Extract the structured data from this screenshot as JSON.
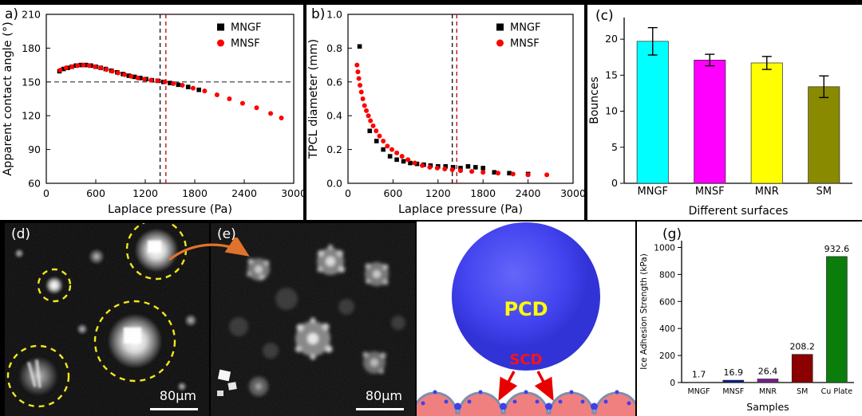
{
  "figure": {
    "background": "#000000"
  },
  "panels": {
    "a": {
      "label": "a)"
    },
    "b": {
      "label": "b)"
    },
    "c": {
      "label": "(c)"
    },
    "d": {
      "label": "(d)",
      "scale_bar": "80µm"
    },
    "e": {
      "label": "(e)",
      "scale_bar": "80µm"
    },
    "schematic": {
      "pcd_label": "PCD",
      "scd_label": "SCD",
      "pcd_color": "#ffff00",
      "scd_color": "#ff1212",
      "droplet_color": "#4040e8",
      "surface_color": "#f08080"
    },
    "g": {
      "label": "(g)"
    }
  },
  "chart_data": [
    {
      "id": "a",
      "type": "scatter",
      "xlabel": "Laplace pressure (Pa)",
      "ylabel": "Apparent contact angle (°)",
      "xlim": [
        0,
        3000
      ],
      "ylim": [
        60,
        210
      ],
      "xticks": [
        0,
        600,
        1200,
        1800,
        2400,
        3000
      ],
      "yticks": [
        60,
        90,
        120,
        150,
        180,
        210
      ],
      "hline": 150,
      "vlines": [
        {
          "x": 1380,
          "color": "#1a1a1a"
        },
        {
          "x": 1450,
          "color": "#c01414"
        }
      ],
      "series": [
        {
          "name": "MNGF",
          "marker": "square",
          "color": "#000000",
          "x": [
            160,
            210,
            260,
            310,
            360,
            420,
            480,
            540,
            600,
            660,
            720,
            790,
            860,
            930,
            1000,
            1070,
            1140,
            1210,
            1280,
            1350,
            1420,
            1500,
            1600,
            1720,
            1850
          ],
          "y": [
            159.5,
            161.5,
            162.5,
            163.5,
            164.5,
            165,
            165,
            164.5,
            163.5,
            162.5,
            161.5,
            160,
            158.5,
            157,
            155.5,
            154.5,
            153.5,
            152.5,
            151.5,
            151,
            150,
            149,
            147.5,
            145.5,
            143
          ]
        },
        {
          "name": "MNSF",
          "marker": "circle",
          "color": "#ff0000",
          "x": [
            170,
            240,
            310,
            380,
            450,
            520,
            590,
            660,
            730,
            800,
            870,
            950,
            1030,
            1110,
            1190,
            1270,
            1350,
            1440,
            1540,
            1650,
            1780,
            1920,
            2070,
            2220,
            2380,
            2550,
            2720,
            2850
          ],
          "y": [
            160.5,
            162.5,
            163.5,
            164.5,
            165,
            164.5,
            163.5,
            162.5,
            161,
            159.5,
            158,
            156.5,
            155,
            153.5,
            152.5,
            151.5,
            151,
            150,
            148.5,
            147,
            144.5,
            142,
            138.5,
            135,
            131,
            127,
            122,
            118
          ]
        }
      ]
    },
    {
      "id": "b",
      "type": "scatter",
      "xlabel": "Laplace pressure (Pa)",
      "ylabel": "TPCL diameter (mm)",
      "xlim": [
        0,
        3000
      ],
      "ylim": [
        0,
        1.0
      ],
      "xticks": [
        0,
        600,
        1200,
        1800,
        2400,
        3000
      ],
      "yticks": [
        0,
        0.2,
        0.4,
        0.6,
        0.8,
        1.0
      ],
      "ytick_labels": [
        "0.0",
        "0.2",
        "0.4",
        "0.6",
        "0.8",
        "1.0"
      ],
      "vlines": [
        {
          "x": 1390,
          "color": "#1a1a1a"
        },
        {
          "x": 1450,
          "color": "#c01414"
        }
      ],
      "series": [
        {
          "name": "MNGF",
          "marker": "square",
          "color": "#000000",
          "x": [
            155,
            290,
            380,
            470,
            560,
            650,
            740,
            830,
            920,
            1010,
            1100,
            1200,
            1300,
            1400,
            1500,
            1600,
            1700,
            1800,
            1950,
            2150,
            2400
          ],
          "y": [
            0.81,
            0.31,
            0.25,
            0.2,
            0.16,
            0.14,
            0.13,
            0.12,
            0.115,
            0.11,
            0.105,
            0.1,
            0.1,
            0.095,
            0.09,
            0.1,
            0.095,
            0.09,
            0.065,
            0.06,
            0.055
          ]
        },
        {
          "name": "MNSF",
          "marker": "circle",
          "color": "#ff0000",
          "x": [
            120,
            132,
            145,
            160,
            178,
            198,
            220,
            245,
            272,
            300,
            335,
            375,
            420,
            470,
            525,
            585,
            650,
            720,
            800,
            890,
            990,
            1090,
            1190,
            1290,
            1390,
            1500,
            1650,
            1800,
            2000,
            2200,
            2400,
            2650
          ],
          "y": [
            0.7,
            0.66,
            0.62,
            0.58,
            0.54,
            0.5,
            0.46,
            0.43,
            0.4,
            0.37,
            0.34,
            0.31,
            0.28,
            0.25,
            0.22,
            0.2,
            0.18,
            0.16,
            0.14,
            0.12,
            0.105,
            0.095,
            0.09,
            0.085,
            0.08,
            0.075,
            0.07,
            0.065,
            0.06,
            0.055,
            0.05,
            0.05
          ]
        }
      ]
    },
    {
      "id": "c",
      "type": "bar",
      "categories": [
        "MNGF",
        "MNSF",
        "MNR",
        "SM"
      ],
      "values": [
        19.7,
        17.1,
        16.7,
        13.4
      ],
      "errors": [
        1.9,
        0.8,
        0.9,
        1.5
      ],
      "colors": [
        "#00ffff",
        "#ff00ff",
        "#ffff00",
        "#8a8a00"
      ],
      "xlabel": "Different surfaces",
      "ylabel": "Bounces",
      "ylim": [
        0,
        23
      ],
      "yticks": [
        0,
        5,
        10,
        15,
        20
      ]
    },
    {
      "id": "g",
      "type": "bar",
      "categories": [
        "MNGF",
        "MNSF",
        "MNR",
        "SM",
        "Cu Plate"
      ],
      "values": [
        1.7,
        16.9,
        26.4,
        208.2,
        932.6
      ],
      "value_labels": [
        "1.7",
        "16.9",
        "26.4",
        "208.2",
        "932.6"
      ],
      "colors": [
        "#141414",
        "#001f8f",
        "#7a1f8a",
        "#8b0000",
        "#0b7d0b"
      ],
      "xlabel": "Samples",
      "ylabel": "Ice Adhesion Strength (kPa)",
      "ylim": [
        0,
        1050
      ],
      "yticks": [
        0,
        200,
        400,
        600,
        800,
        1000
      ]
    }
  ]
}
